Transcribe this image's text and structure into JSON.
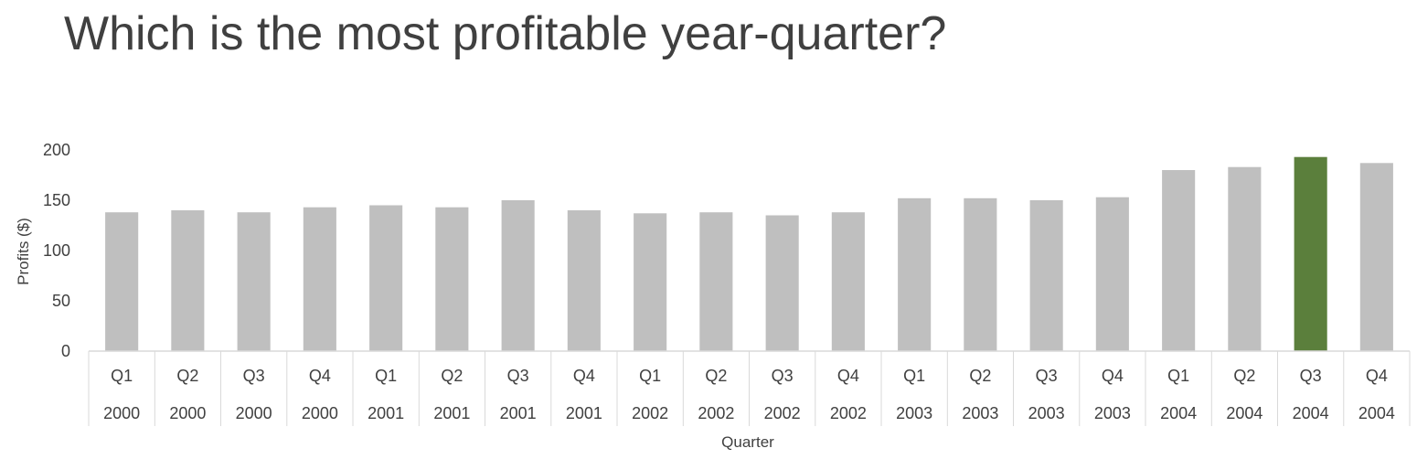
{
  "title": "Which is the most profitable year-quarter?",
  "colors": {
    "bar": "#bfbfbf",
    "highlight": "#5b7f3c",
    "axis": "#d9d9d9",
    "text": "#404040"
  },
  "chart_data": {
    "type": "bar",
    "categories": [
      {
        "quarter": "Q1",
        "year": "2000"
      },
      {
        "quarter": "Q2",
        "year": "2000"
      },
      {
        "quarter": "Q3",
        "year": "2000"
      },
      {
        "quarter": "Q4",
        "year": "2000"
      },
      {
        "quarter": "Q1",
        "year": "2001"
      },
      {
        "quarter": "Q2",
        "year": "2001"
      },
      {
        "quarter": "Q3",
        "year": "2001"
      },
      {
        "quarter": "Q4",
        "year": "2001"
      },
      {
        "quarter": "Q1",
        "year": "2002"
      },
      {
        "quarter": "Q2",
        "year": "2002"
      },
      {
        "quarter": "Q3",
        "year": "2002"
      },
      {
        "quarter": "Q4",
        "year": "2002"
      },
      {
        "quarter": "Q1",
        "year": "2003"
      },
      {
        "quarter": "Q2",
        "year": "2003"
      },
      {
        "quarter": "Q3",
        "year": "2003"
      },
      {
        "quarter": "Q4",
        "year": "2003"
      },
      {
        "quarter": "Q1",
        "year": "2004"
      },
      {
        "quarter": "Q2",
        "year": "2004"
      },
      {
        "quarter": "Q3",
        "year": "2004"
      },
      {
        "quarter": "Q4",
        "year": "2004"
      }
    ],
    "values": [
      138,
      140,
      138,
      143,
      145,
      143,
      150,
      140,
      137,
      138,
      135,
      138,
      152,
      152,
      150,
      153,
      180,
      183,
      193,
      187
    ],
    "highlight_index": 18,
    "xlabel": "Quarter",
    "ylabel": "Profits ($)",
    "ylim": [
      0,
      200
    ],
    "yticks": [
      0,
      50,
      100,
      150,
      200
    ],
    "grid": false,
    "legend": "none"
  }
}
